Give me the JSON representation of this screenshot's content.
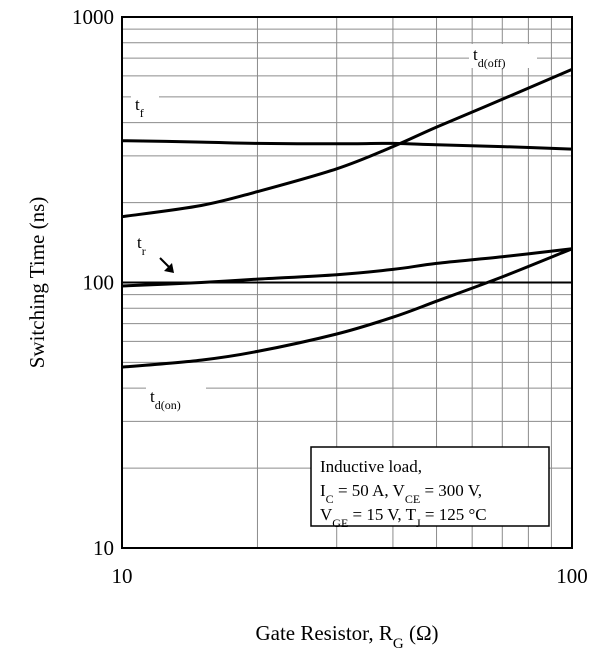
{
  "chart_data": {
    "type": "line",
    "title": "",
    "xlabel": {
      "main": "Gate Resistor, R",
      "sub": "G",
      "suffix": " (Ω)"
    },
    "ylabel": "Switching Time (ns)",
    "xscale": "log",
    "yscale": "log",
    "xlim": [
      10,
      100
    ],
    "ylim": [
      10,
      1000
    ],
    "grid": true,
    "xticks": [
      {
        "value": 10,
        "label": "10"
      },
      {
        "value": 100,
        "label": "100"
      }
    ],
    "yticks": [
      {
        "value": 10,
        "label": "10"
      },
      {
        "value": 100,
        "label": "100"
      },
      {
        "value": 1000,
        "label": "1000"
      }
    ],
    "series": [
      {
        "name": "t_d(off)",
        "label": {
          "main": "t",
          "sub": "d(off)"
        },
        "x": [
          10,
          15,
          20,
          30,
          40,
          50,
          70,
          100
        ],
        "y": [
          177,
          195,
          220,
          268,
          325,
          385,
          490,
          635
        ]
      },
      {
        "name": "t_f",
        "label": {
          "main": "t",
          "sub": "f"
        },
        "x": [
          10,
          15,
          20,
          30,
          40,
          50,
          70,
          100
        ],
        "y": [
          342,
          338,
          334,
          333,
          334,
          330,
          325,
          318
        ]
      },
      {
        "name": "t_r",
        "label": {
          "main": "t",
          "sub": "r"
        },
        "x": [
          10,
          15,
          20,
          30,
          40,
          50,
          70,
          100
        ],
        "y": [
          97,
          100,
          103,
          107,
          112,
          118,
          125,
          134
        ]
      },
      {
        "name": "t_d(on)",
        "label": {
          "main": "t",
          "sub": "d(on)"
        },
        "x": [
          10,
          15,
          20,
          30,
          40,
          50,
          70,
          100
        ],
        "y": [
          48,
          51,
          55,
          64,
          74,
          85,
          105,
          134
        ]
      }
    ],
    "annotations": [
      {
        "text": "Inductive load,"
      },
      {
        "parts": [
          {
            "t": "I"
          },
          {
            "sub": "C"
          },
          {
            "t": " = 50 A, V"
          },
          {
            "sub": "CE"
          },
          {
            "t": " = 300 V,"
          }
        ]
      },
      {
        "parts": [
          {
            "t": "V"
          },
          {
            "sub": "GE"
          },
          {
            "t": " = 15 V, T"
          },
          {
            "sub": "J"
          },
          {
            "t": " = 125 °C"
          }
        ]
      }
    ]
  }
}
